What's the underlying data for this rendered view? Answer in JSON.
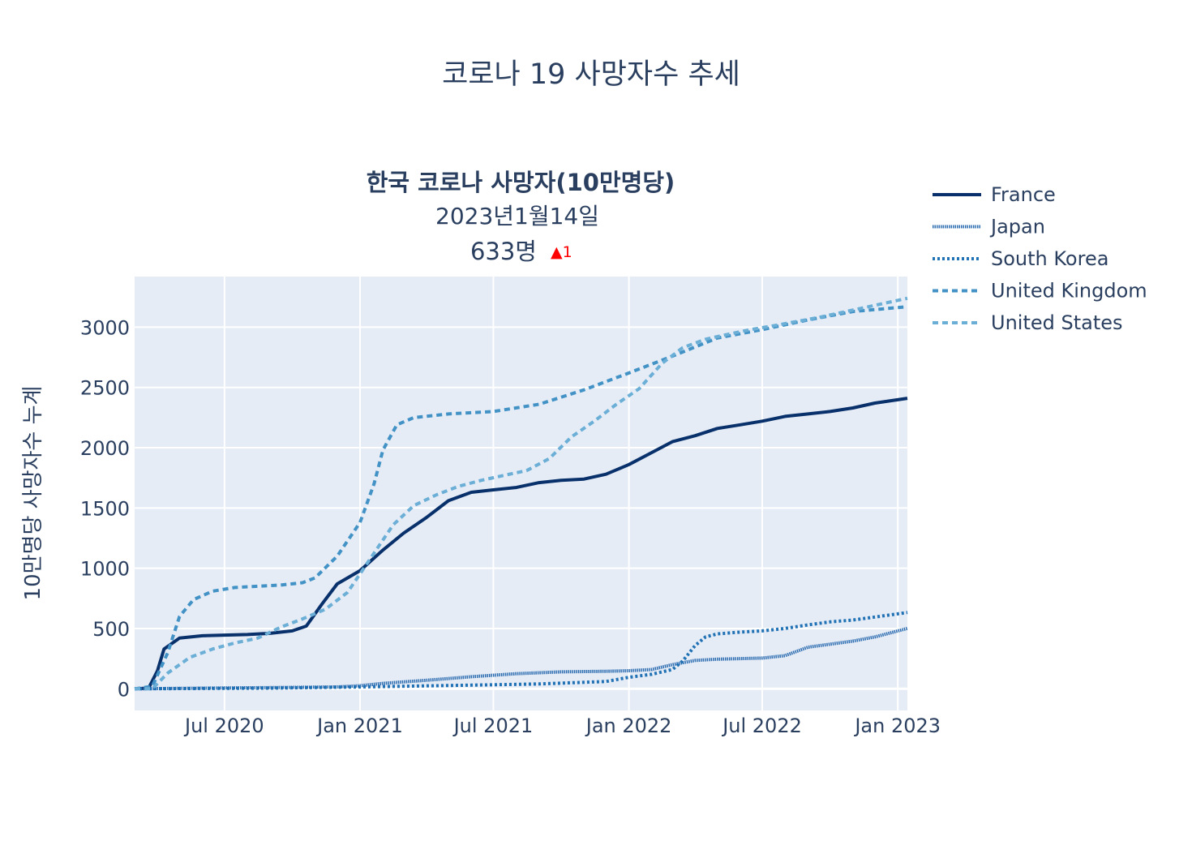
{
  "chart_data": {
    "type": "line",
    "title": "코로나 19 사망자수 추세",
    "indicator": {
      "title": "한국 코로나 사망자(10만명당)",
      "date": "2023년1월14일",
      "value": "633명",
      "delta": "▲1",
      "delta_color": "#ff0000"
    },
    "ylabel": "10만명당 사망자수 누계",
    "xlabel": "",
    "xlim": [
      "2020-03-01",
      "2023-01-14"
    ],
    "ylim": [
      -180,
      3420
    ],
    "yticks": [
      0,
      500,
      1000,
      1500,
      2000,
      2500,
      3000
    ],
    "xticks": [
      {
        "date": "2020-07-01",
        "label": "Jul 2020"
      },
      {
        "date": "2021-01-01",
        "label": "Jan 2021"
      },
      {
        "date": "2021-07-01",
        "label": "Jul 2021"
      },
      {
        "date": "2022-01-01",
        "label": "Jan 2022"
      },
      {
        "date": "2022-07-01",
        "label": "Jul 2022"
      },
      {
        "date": "2023-01-01",
        "label": "Jan 2023"
      }
    ],
    "grid": true,
    "legend_position": "right",
    "plot_bg": "#e5ecf6",
    "series": [
      {
        "name": "France",
        "color": "#08306b",
        "dash": "solid",
        "points": [
          [
            "2020-03-01",
            0
          ],
          [
            "2020-03-20",
            5
          ],
          [
            "2020-04-01",
            150
          ],
          [
            "2020-04-10",
            330
          ],
          [
            "2020-05-01",
            420
          ],
          [
            "2020-06-01",
            440
          ],
          [
            "2020-07-01",
            445
          ],
          [
            "2020-08-01",
            450
          ],
          [
            "2020-09-01",
            460
          ],
          [
            "2020-10-01",
            480
          ],
          [
            "2020-10-20",
            520
          ],
          [
            "2020-11-10",
            700
          ],
          [
            "2020-12-01",
            870
          ],
          [
            "2021-01-01",
            980
          ],
          [
            "2021-02-01",
            1150
          ],
          [
            "2021-03-01",
            1290
          ],
          [
            "2021-04-01",
            1420
          ],
          [
            "2021-05-01",
            1560
          ],
          [
            "2021-06-01",
            1630
          ],
          [
            "2021-07-01",
            1650
          ],
          [
            "2021-08-01",
            1670
          ],
          [
            "2021-09-01",
            1710
          ],
          [
            "2021-10-01",
            1730
          ],
          [
            "2021-11-01",
            1740
          ],
          [
            "2021-12-01",
            1780
          ],
          [
            "2022-01-01",
            1860
          ],
          [
            "2022-02-01",
            1960
          ],
          [
            "2022-03-01",
            2050
          ],
          [
            "2022-04-01",
            2100
          ],
          [
            "2022-05-01",
            2160
          ],
          [
            "2022-06-01",
            2190
          ],
          [
            "2022-07-01",
            2220
          ],
          [
            "2022-08-01",
            2260
          ],
          [
            "2022-09-01",
            2280
          ],
          [
            "2022-10-01",
            2300
          ],
          [
            "2022-11-01",
            2330
          ],
          [
            "2022-12-01",
            2370
          ],
          [
            "2023-01-14",
            2410
          ]
        ]
      },
      {
        "name": "Japan",
        "color": "#2c6cb0",
        "dash": "1.5,1",
        "points": [
          [
            "2020-03-01",
            0
          ],
          [
            "2020-06-01",
            5
          ],
          [
            "2020-09-01",
            10
          ],
          [
            "2020-12-01",
            15
          ],
          [
            "2021-01-01",
            25
          ],
          [
            "2021-02-01",
            45
          ],
          [
            "2021-04-01",
            70
          ],
          [
            "2021-06-01",
            100
          ],
          [
            "2021-08-01",
            125
          ],
          [
            "2021-10-01",
            140
          ],
          [
            "2021-12-01",
            145
          ],
          [
            "2022-01-01",
            150
          ],
          [
            "2022-02-01",
            160
          ],
          [
            "2022-03-01",
            200
          ],
          [
            "2022-04-01",
            235
          ],
          [
            "2022-05-01",
            245
          ],
          [
            "2022-06-01",
            250
          ],
          [
            "2022-07-01",
            255
          ],
          [
            "2022-08-01",
            275
          ],
          [
            "2022-09-01",
            345
          ],
          [
            "2022-10-01",
            370
          ],
          [
            "2022-11-01",
            395
          ],
          [
            "2022-12-01",
            430
          ],
          [
            "2023-01-14",
            500
          ]
        ]
      },
      {
        "name": "South Korea",
        "color": "#2171b5",
        "dash": "3,3",
        "points": [
          [
            "2020-03-01",
            0
          ],
          [
            "2020-09-01",
            5
          ],
          [
            "2021-01-01",
            15
          ],
          [
            "2021-06-01",
            30
          ],
          [
            "2021-09-01",
            40
          ],
          [
            "2021-12-01",
            60
          ],
          [
            "2022-01-01",
            95
          ],
          [
            "2022-02-01",
            120
          ],
          [
            "2022-03-01",
            160
          ],
          [
            "2022-03-15",
            230
          ],
          [
            "2022-04-01",
            360
          ],
          [
            "2022-04-15",
            430
          ],
          [
            "2022-05-01",
            455
          ],
          [
            "2022-06-01",
            470
          ],
          [
            "2022-07-01",
            480
          ],
          [
            "2022-08-01",
            500
          ],
          [
            "2022-09-01",
            530
          ],
          [
            "2022-10-01",
            555
          ],
          [
            "2022-11-01",
            570
          ],
          [
            "2022-12-01",
            595
          ],
          [
            "2023-01-14",
            633
          ]
        ]
      },
      {
        "name": "United Kingdom",
        "color": "#4292c6",
        "dash": "7,5",
        "points": [
          [
            "2020-03-01",
            0
          ],
          [
            "2020-03-25",
            20
          ],
          [
            "2020-04-15",
            300
          ],
          [
            "2020-05-01",
            600
          ],
          [
            "2020-05-20",
            740
          ],
          [
            "2020-06-15",
            810
          ],
          [
            "2020-07-15",
            840
          ],
          [
            "2020-08-15",
            850
          ],
          [
            "2020-09-15",
            860
          ],
          [
            "2020-10-15",
            880
          ],
          [
            "2020-11-01",
            920
          ],
          [
            "2020-12-01",
            1100
          ],
          [
            "2021-01-01",
            1380
          ],
          [
            "2021-01-20",
            1700
          ],
          [
            "2021-02-01",
            1980
          ],
          [
            "2021-02-20",
            2190
          ],
          [
            "2021-03-15",
            2250
          ],
          [
            "2021-05-01",
            2280
          ],
          [
            "2021-07-01",
            2300
          ],
          [
            "2021-09-01",
            2360
          ],
          [
            "2021-11-01",
            2480
          ],
          [
            "2022-01-01",
            2620
          ],
          [
            "2022-03-01",
            2760
          ],
          [
            "2022-05-01",
            2910
          ],
          [
            "2022-07-01",
            2980
          ],
          [
            "2022-09-01",
            3060
          ],
          [
            "2022-11-01",
            3130
          ],
          [
            "2023-01-14",
            3170
          ]
        ]
      },
      {
        "name": "United States",
        "color": "#6baed6",
        "dash": "7,5",
        "points": [
          [
            "2020-03-01",
            0
          ],
          [
            "2020-03-25",
            0
          ],
          [
            "2020-04-15",
            130
          ],
          [
            "2020-05-15",
            260
          ],
          [
            "2020-06-15",
            330
          ],
          [
            "2020-07-15",
            380
          ],
          [
            "2020-08-15",
            420
          ],
          [
            "2020-09-15",
            510
          ],
          [
            "2020-10-15",
            580
          ],
          [
            "2020-11-15",
            660
          ],
          [
            "2020-12-15",
            800
          ],
          [
            "2021-01-15",
            1080
          ],
          [
            "2021-02-15",
            1360
          ],
          [
            "2021-03-15",
            1520
          ],
          [
            "2021-04-15",
            1610
          ],
          [
            "2021-05-15",
            1680
          ],
          [
            "2021-06-15",
            1730
          ],
          [
            "2021-07-15",
            1770
          ],
          [
            "2021-08-15",
            1810
          ],
          [
            "2021-09-15",
            1910
          ],
          [
            "2021-10-15",
            2090
          ],
          [
            "2021-11-15",
            2220
          ],
          [
            "2021-12-15",
            2360
          ],
          [
            "2022-01-15",
            2490
          ],
          [
            "2022-02-15",
            2700
          ],
          [
            "2022-03-15",
            2830
          ],
          [
            "2022-04-15",
            2900
          ],
          [
            "2022-05-15",
            2940
          ],
          [
            "2022-06-15",
            2980
          ],
          [
            "2022-07-15",
            3010
          ],
          [
            "2022-09-15",
            3080
          ],
          [
            "2022-11-15",
            3160
          ],
          [
            "2023-01-14",
            3240
          ]
        ]
      }
    ]
  }
}
